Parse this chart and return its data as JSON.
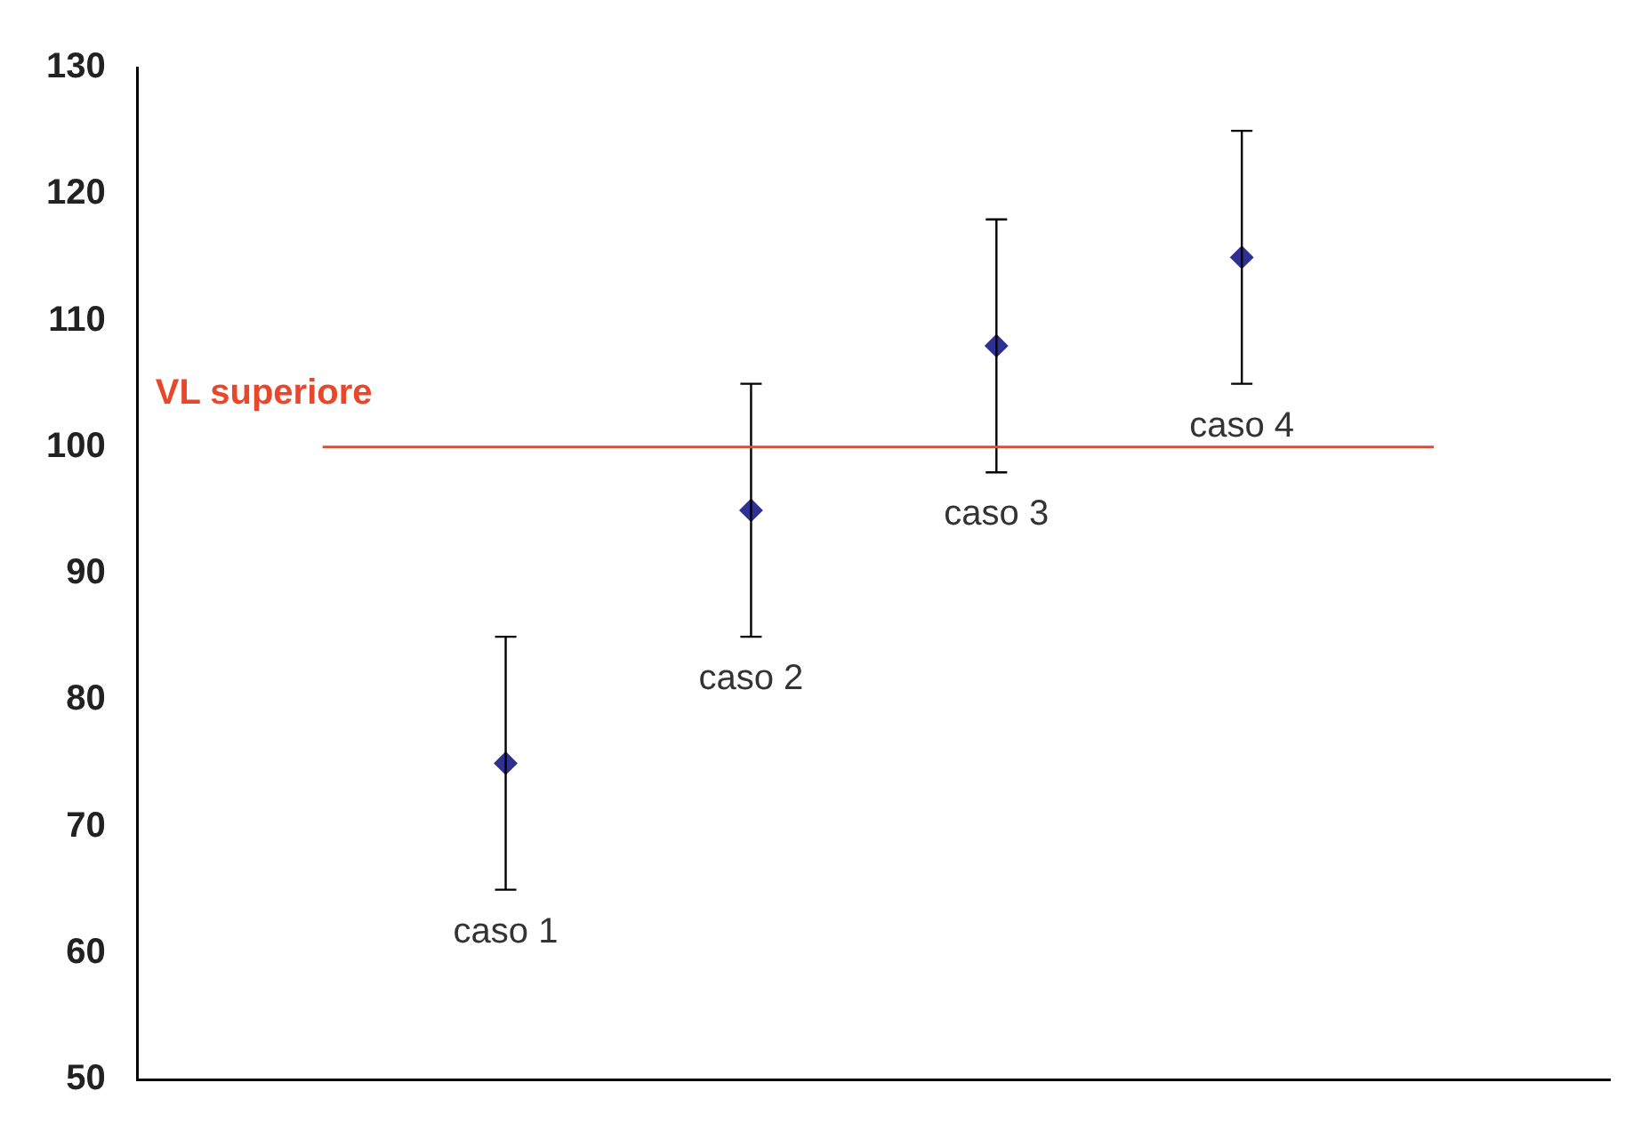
{
  "chart_data": {
    "type": "scatter",
    "categories": [
      null,
      null,
      null,
      null,
      null,
      null
    ],
    "values": [
      null,
      75,
      95,
      108,
      115,
      null
    ],
    "errors": [
      null,
      10,
      10,
      10,
      10,
      null
    ],
    "color": "#2e3192",
    "marker": "diamond",
    "grid": false,
    "legend": false,
    "ylim": [
      50,
      130
    ],
    "yticks": [
      50,
      60,
      70,
      80,
      90,
      100,
      110,
      120,
      130
    ],
    "annotations": [
      "caso 1",
      "caso 2",
      "caso 3",
      "caso 4"
    ],
    "ref_lines": [
      {
        "axis": "y",
        "value": 100,
        "label": "VL superiore",
        "color": "#e8472b"
      }
    ]
  }
}
